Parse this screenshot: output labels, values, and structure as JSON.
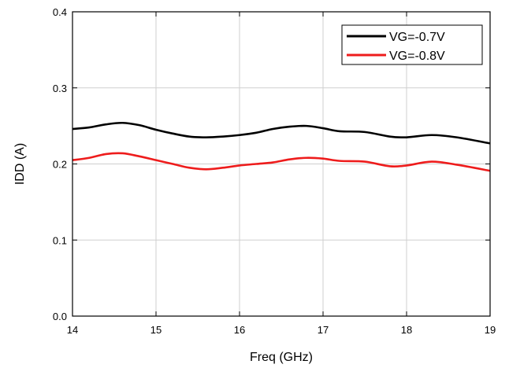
{
  "chart_data": {
    "type": "line",
    "xlabel": "Freq (GHz)",
    "ylabel": "IDD (A)",
    "xlim": [
      14,
      19
    ],
    "ylim": [
      0.0,
      0.4
    ],
    "xticks": [
      14,
      15,
      16,
      17,
      18,
      19
    ],
    "yticks": [
      0.0,
      0.1,
      0.2,
      0.3,
      0.4
    ],
    "xtick_labels": [
      "14",
      "15",
      "16",
      "17",
      "18",
      "19"
    ],
    "ytick_labels": [
      "0.0",
      "0.1",
      "0.2",
      "0.3",
      "0.4"
    ],
    "grid": true,
    "legend_position": "top-right",
    "series": [
      {
        "name": "VG=-0.7V",
        "color": "#000000",
        "x": [
          14.0,
          14.2,
          14.4,
          14.6,
          14.8,
          15.0,
          15.2,
          15.4,
          15.6,
          15.8,
          16.0,
          16.2,
          16.4,
          16.6,
          16.8,
          17.0,
          17.2,
          17.5,
          17.8,
          18.0,
          18.3,
          18.6,
          19.0
        ],
        "y": [
          0.246,
          0.248,
          0.252,
          0.254,
          0.251,
          0.245,
          0.24,
          0.236,
          0.235,
          0.236,
          0.238,
          0.241,
          0.246,
          0.249,
          0.25,
          0.247,
          0.243,
          0.242,
          0.236,
          0.235,
          0.238,
          0.235,
          0.227
        ]
      },
      {
        "name": "VG=-0.8V",
        "color": "#ee1c1c",
        "x": [
          14.0,
          14.2,
          14.4,
          14.6,
          14.8,
          15.0,
          15.2,
          15.4,
          15.6,
          15.8,
          16.0,
          16.2,
          16.4,
          16.6,
          16.8,
          17.0,
          17.2,
          17.5,
          17.8,
          18.0,
          18.3,
          18.6,
          19.0
        ],
        "y": [
          0.205,
          0.208,
          0.213,
          0.214,
          0.21,
          0.205,
          0.2,
          0.195,
          0.193,
          0.195,
          0.198,
          0.2,
          0.202,
          0.206,
          0.208,
          0.207,
          0.204,
          0.203,
          0.197,
          0.198,
          0.203,
          0.199,
          0.191
        ]
      }
    ]
  }
}
